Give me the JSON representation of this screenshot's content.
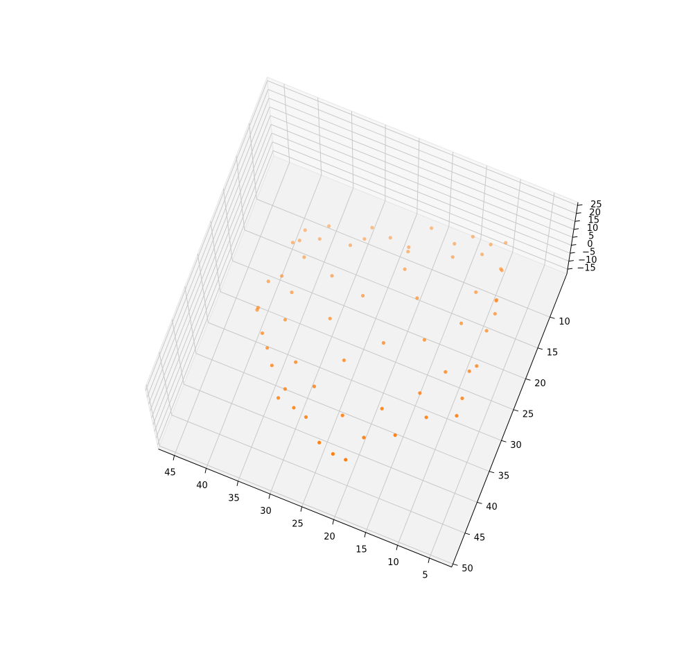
{
  "chart_data": {
    "type": "scatter3d",
    "xlim": [
      1.5,
      47.5
    ],
    "ylim": [
      3,
      50.5
    ],
    "zlim": [
      -18,
      27
    ],
    "xticks": [
      5,
      10,
      15,
      20,
      25,
      30,
      35,
      40,
      45
    ],
    "yticks": [
      10,
      15,
      20,
      25,
      30,
      35,
      40,
      45,
      50
    ],
    "zticks": [
      {
        "value": -15,
        "label": "−15"
      },
      {
        "value": -10,
        "label": "−10"
      },
      {
        "value": -5,
        "label": "−5"
      },
      0,
      5,
      10,
      15,
      20,
      25
    ],
    "grid": true,
    "series": [
      {
        "color": "#ff7f0e",
        "x": [
          37.3,
          34,
          31,
          28,
          25.5,
          22.9,
          20,
          17,
          14.5,
          12,
          10,
          9.5,
          9,
          8.5,
          8.2,
          7.8,
          7.8,
          7.8,
          7.8,
          7.8,
          7.8,
          11.3,
          14.8,
          18.3,
          20.5,
          21.8,
          24.5,
          27,
          29.5,
          31,
          32.5,
          34.3,
          36,
          37.8,
          38.8,
          39.5,
          39,
          38.5,
          38,
          37.6,
          34,
          28,
          22,
          16,
          12,
          11,
          11,
          11,
          13,
          17,
          22,
          27,
          31,
          34,
          35,
          35,
          25,
          20,
          28,
          18,
          24,
          15,
          30,
          21
        ],
        "y": [
          16,
          15,
          14.5,
          13.5,
          12.8,
          12.2,
          11,
          9.8,
          8.8,
          8,
          7.4,
          9.8,
          12.3,
          14.8,
          16,
          17.4,
          21,
          24.5,
          28,
          30.5,
          32.6,
          35.8,
          39,
          42.3,
          44,
          45.5,
          44,
          42.5,
          41,
          40.2,
          39.6,
          37,
          34.5,
          32,
          30.5,
          29.5,
          26,
          22.5,
          19,
          17.5,
          18.5,
          16.5,
          15,
          12.5,
          12,
          17,
          23,
          29,
          34,
          38.5,
          41,
          39,
          36,
          32,
          27,
          22,
          25,
          30,
          30,
          22,
          35,
          27,
          24,
          19
        ],
        "z": [
          2,
          6,
          -3,
          9,
          4,
          0,
          12,
          -6,
          7,
          3,
          5,
          -2,
          10,
          1,
          6,
          4,
          8,
          -1,
          11,
          3,
          0,
          7,
          2,
          9,
          -4,
          5,
          1,
          8,
          3,
          10,
          -2,
          6,
          4,
          0,
          9,
          2,
          7,
          -3,
          5,
          1,
          12,
          14,
          10,
          15,
          13,
          11,
          16,
          9,
          13,
          15,
          12,
          14,
          10,
          16,
          11,
          13,
          18,
          17,
          19,
          16,
          20,
          15,
          18,
          17
        ]
      }
    ]
  }
}
